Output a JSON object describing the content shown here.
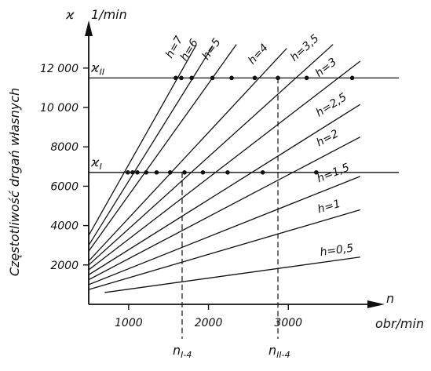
{
  "chart_data": {
    "type": "line",
    "title": "",
    "xlabel": "obr/min",
    "ylabel": "Częstotliwość drgań własnych",
    "x_axis_symbol": "n",
    "y_axis_symbol": "ϰ",
    "y_unit": "1/min",
    "xlim": [
      500,
      3900
    ],
    "ylim": [
      0,
      13600
    ],
    "x_ticks": [
      1000,
      2000,
      3000
    ],
    "x_tick_labels": [
      "1000",
      "2000",
      "3000"
    ],
    "y_ticks": [
      2000,
      4000,
      6000,
      8000,
      10000,
      12000
    ],
    "y_tick_labels": [
      "2000",
      "4000",
      "6000",
      "8000",
      "10 000",
      "12 000"
    ],
    "reference_lines": [
      {
        "label": "ϰ_II",
        "label_main": "ϰ",
        "label_sub": "II",
        "y": 11500
      },
      {
        "label": "ϰ_I",
        "label_main": "ϰ",
        "label_sub": "I",
        "y": 6700
      }
    ],
    "markers": [
      {
        "label": "n_I-4",
        "label_main": "n",
        "label_sub": "I-4",
        "x": 1670
      },
      {
        "label": "n_II-4",
        "label_main": "n",
        "label_sub": "II-4",
        "x": 2870
      }
    ],
    "series": [
      {
        "name": "h=7",
        "label_main": "h=7",
        "x": [
          500,
          1850
        ],
        "y": [
          3500,
          13200
        ]
      },
      {
        "name": "h=6",
        "label_main": "h=6",
        "x": [
          500,
          2050
        ],
        "y": [
          3000,
          13100
        ]
      },
      {
        "name": "h=5",
        "label_main": "h=5",
        "x": [
          500,
          2350
        ],
        "y": [
          2700,
          13200
        ]
      },
      {
        "name": "h=4",
        "label_main": "h=4",
        "x": [
          500,
          2980
        ],
        "y": [
          2200,
          13000
        ]
      },
      {
        "name": "h=3,5",
        "label_main": "h=3,5",
        "x": [
          500,
          3560
        ],
        "y": [
          2000,
          13200
        ]
      },
      {
        "name": "h=3",
        "label_main": "h=3",
        "x": [
          500,
          3900
        ],
        "y": [
          1750,
          12350
        ]
      },
      {
        "name": "h=2,5",
        "label_main": "h=2,5",
        "x": [
          500,
          3900
        ],
        "y": [
          1500,
          10150
        ]
      },
      {
        "name": "h=2",
        "label_main": "h=2",
        "x": [
          500,
          3900
        ],
        "y": [
          1250,
          8500
        ]
      },
      {
        "name": "h=1,5",
        "label_main": "h=1,5",
        "x": [
          500,
          3900
        ],
        "y": [
          1000,
          6500
        ]
      },
      {
        "name": "h=1",
        "label_main": "h=1",
        "x": [
          500,
          3900
        ],
        "y": [
          750,
          4800
        ]
      },
      {
        "name": "h=0,5",
        "label_main": "h=0,5",
        "x": [
          700,
          3900
        ],
        "y": [
          600,
          2400
        ]
      }
    ],
    "points": [
      {
        "x": 990,
        "y": 6700
      },
      {
        "x": 1050,
        "y": 6700
      },
      {
        "x": 1110,
        "y": 6700
      },
      {
        "x": 1220,
        "y": 6700
      },
      {
        "x": 1350,
        "y": 6700
      },
      {
        "x": 1520,
        "y": 6700
      },
      {
        "x": 1700,
        "y": 6700
      },
      {
        "x": 1930,
        "y": 6700
      },
      {
        "x": 2240,
        "y": 6700
      },
      {
        "x": 2680,
        "y": 6700
      },
      {
        "x": 3350,
        "y": 6700
      },
      {
        "x": 1590,
        "y": 11500
      },
      {
        "x": 1660,
        "y": 11500
      },
      {
        "x": 1790,
        "y": 11500
      },
      {
        "x": 2050,
        "y": 11500
      },
      {
        "x": 2290,
        "y": 11500
      },
      {
        "x": 2580,
        "y": 11500
      },
      {
        "x": 2870,
        "y": 11500
      },
      {
        "x": 3230,
        "y": 11500
      },
      {
        "x": 3800,
        "y": 11500
      }
    ],
    "grid": false
  }
}
